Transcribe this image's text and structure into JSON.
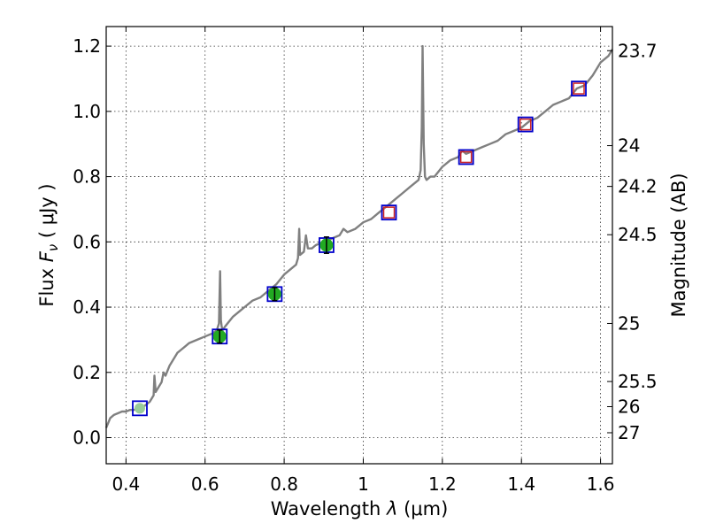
{
  "chart_data": {
    "type": "line",
    "title": "",
    "xlabel": "Wavelength  λ (μm)",
    "ylabel": "Flux  F_ν  ( μJy )",
    "ylabel_parts": {
      "prefix": "Flux  ",
      "symbol": "F",
      "subscript": "ν",
      "suffix": "  ( μJy )"
    },
    "xlabel_parts": {
      "prefix": "Wavelength  ",
      "symbol": "λ",
      "suffix": " (μm)"
    },
    "right_ylabel": "Magnitude (AB)",
    "xlim": [
      0.35,
      1.63
    ],
    "ylim": [
      -0.08,
      1.26
    ],
    "grid": true,
    "x_ticks": [
      {
        "value": 0.4,
        "label": "0.4"
      },
      {
        "value": 0.6,
        "label": "0.6"
      },
      {
        "value": 0.8,
        "label": "0.8"
      },
      {
        "value": 1.0,
        "label": "1"
      },
      {
        "value": 1.2,
        "label": "1.2"
      },
      {
        "value": 1.4,
        "label": "1.4"
      },
      {
        "value": 1.6,
        "label": "1.6"
      }
    ],
    "y_ticks": [
      {
        "value": 0.0,
        "label": "0.0"
      },
      {
        "value": 0.2,
        "label": "0.2"
      },
      {
        "value": 0.4,
        "label": "0.4"
      },
      {
        "value": 0.6,
        "label": "0.6"
      },
      {
        "value": 0.8,
        "label": "0.8"
      },
      {
        "value": 1.0,
        "label": "1.0"
      },
      {
        "value": 1.2,
        "label": "1.2"
      }
    ],
    "right_ticks": [
      {
        "flux": 1.186,
        "label": "23.7"
      },
      {
        "flux": 0.895,
        "label": "24"
      },
      {
        "flux": 0.77,
        "label": "24.2"
      },
      {
        "flux": 0.622,
        "label": "24.5"
      },
      {
        "flux": 0.35,
        "label": "25"
      },
      {
        "flux": 0.172,
        "label": "25.5"
      },
      {
        "flux": 0.095,
        "label": "26"
      },
      {
        "flux": 0.015,
        "label": "27"
      }
    ],
    "model_spectrum": {
      "color": "#808080",
      "x": [
        0.35,
        0.36,
        0.37,
        0.38,
        0.39,
        0.4,
        0.41,
        0.42,
        0.43,
        0.44,
        0.45,
        0.46,
        0.47,
        0.472,
        0.475,
        0.48,
        0.49,
        0.495,
        0.5,
        0.51,
        0.52,
        0.53,
        0.54,
        0.55,
        0.56,
        0.58,
        0.6,
        0.62,
        0.63,
        0.635,
        0.638,
        0.64,
        0.642,
        0.645,
        0.65,
        0.67,
        0.69,
        0.7,
        0.72,
        0.74,
        0.76,
        0.77,
        0.78,
        0.8,
        0.82,
        0.83,
        0.835,
        0.838,
        0.84,
        0.85,
        0.855,
        0.86,
        0.87,
        0.88,
        0.9,
        0.92,
        0.94,
        0.95,
        0.96,
        0.98,
        1.0,
        1.02,
        1.04,
        1.06,
        1.08,
        1.1,
        1.12,
        1.14,
        1.145,
        1.148,
        1.15,
        1.153,
        1.156,
        1.16,
        1.17,
        1.18,
        1.2,
        1.22,
        1.24,
        1.25,
        1.26,
        1.28,
        1.3,
        1.32,
        1.34,
        1.36,
        1.38,
        1.4,
        1.42,
        1.44,
        1.46,
        1.48,
        1.5,
        1.52,
        1.54,
        1.56,
        1.58,
        1.6,
        1.62,
        1.63
      ],
      "y": [
        0.03,
        0.06,
        0.07,
        0.075,
        0.08,
        0.08,
        0.085,
        0.085,
        0.09,
        0.09,
        0.1,
        0.11,
        0.13,
        0.19,
        0.14,
        0.15,
        0.17,
        0.2,
        0.19,
        0.22,
        0.24,
        0.26,
        0.27,
        0.28,
        0.29,
        0.3,
        0.31,
        0.32,
        0.33,
        0.35,
        0.51,
        0.36,
        0.34,
        0.33,
        0.34,
        0.37,
        0.39,
        0.4,
        0.42,
        0.43,
        0.45,
        0.46,
        0.47,
        0.5,
        0.52,
        0.53,
        0.55,
        0.64,
        0.56,
        0.57,
        0.62,
        0.58,
        0.58,
        0.59,
        0.6,
        0.61,
        0.62,
        0.64,
        0.63,
        0.64,
        0.66,
        0.67,
        0.69,
        0.71,
        0.73,
        0.75,
        0.77,
        0.79,
        0.82,
        0.95,
        1.2,
        0.9,
        0.8,
        0.79,
        0.8,
        0.8,
        0.83,
        0.85,
        0.86,
        0.88,
        0.87,
        0.88,
        0.89,
        0.9,
        0.91,
        0.93,
        0.94,
        0.95,
        0.97,
        0.98,
        1.0,
        1.02,
        1.03,
        1.04,
        1.07,
        1.08,
        1.11,
        1.15,
        1.17,
        1.19
      ]
    },
    "synthetic_photometry": {
      "marker": "open-square",
      "color": "#0000cc",
      "x": [
        0.435,
        0.637,
        0.776,
        0.907,
        1.065,
        1.26,
        1.41,
        1.545
      ],
      "y": [
        0.09,
        0.31,
        0.44,
        0.59,
        0.69,
        0.86,
        0.96,
        1.07
      ]
    },
    "upper_limit_points": {
      "marker": "open-square",
      "color": "#cc2222",
      "x": [
        1.065,
        1.26,
        1.41,
        1.545
      ],
      "y": [
        0.69,
        0.86,
        0.96,
        1.07
      ]
    },
    "observed_points": {
      "marker": "circle",
      "color": "#22aa22",
      "x": [
        0.637,
        0.776,
        0.907
      ],
      "y": [
        0.31,
        0.44,
        0.59
      ],
      "yerr": [
        0.02,
        0.02,
        0.025
      ]
    },
    "faint_point": {
      "marker": "circle",
      "color": "#99cc99",
      "x": [
        0.435
      ],
      "y": [
        0.09
      ]
    }
  }
}
